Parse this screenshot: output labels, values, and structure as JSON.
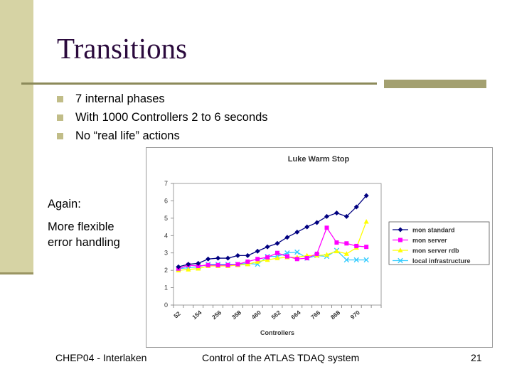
{
  "slide": {
    "title": "Transitions",
    "bullets": [
      "7 internal phases",
      "With 1000 Controllers 2 to 6 seconds",
      "No “real life” actions"
    ],
    "note_lines": [
      "Again:",
      "More flexible",
      "error handling"
    ],
    "footer": {
      "left": "CHEP04 - Interlaken",
      "center": "Control of the ATLAS TDAQ system",
      "page": "21"
    }
  },
  "chart_data": {
    "type": "line",
    "title": "Luke Warm Stop",
    "xlabel": "Controllers",
    "ylabel": "",
    "ylim": [
      0,
      7
    ],
    "yticks": [
      0,
      1,
      2,
      3,
      4,
      5,
      6,
      7
    ],
    "x": [
      52,
      103,
      154,
      205,
      256,
      307,
      358,
      409,
      460,
      511,
      562,
      613,
      664,
      715,
      766,
      817,
      868,
      919,
      970,
      1021,
      1072
    ],
    "x_tick_labels": [
      "52",
      "154",
      "256",
      "358",
      "460",
      "562",
      "664",
      "766",
      "868",
      "970"
    ],
    "legend": "right",
    "grid": false,
    "series": [
      {
        "name": "mon standard",
        "color": "#000080",
        "marker": "diamond",
        "values": [
          2.2,
          2.35,
          2.4,
          2.65,
          2.7,
          2.7,
          2.85,
          2.85,
          3.1,
          3.35,
          3.55,
          3.9,
          4.2,
          4.5,
          4.75,
          5.1,
          5.3,
          5.1,
          5.65,
          6.3,
          null
        ]
      },
      {
        "name": "mon server",
        "color": "#ff00ff",
        "marker": "square",
        "values": [
          2.1,
          2.3,
          2.25,
          2.3,
          2.3,
          2.3,
          2.35,
          2.5,
          2.65,
          2.75,
          3.0,
          2.8,
          2.65,
          2.7,
          2.95,
          4.45,
          3.6,
          3.55,
          3.4,
          3.35,
          null
        ]
      },
      {
        "name": "mon server rdb",
        "color": "#ffff00",
        "marker": "triangle",
        "values": [
          2.0,
          2.05,
          2.1,
          2.25,
          2.25,
          2.25,
          2.3,
          2.35,
          2.5,
          2.6,
          2.7,
          2.75,
          2.75,
          2.85,
          2.85,
          2.9,
          3.1,
          2.95,
          3.3,
          4.8,
          null
        ]
      },
      {
        "name": "local infrastructure",
        "color": "#33ccff",
        "marker": "x",
        "values": [
          2.1,
          2.15,
          2.2,
          2.35,
          2.35,
          2.35,
          2.35,
          2.4,
          2.35,
          2.8,
          2.8,
          3.0,
          3.05,
          2.7,
          2.85,
          2.8,
          3.15,
          2.6,
          2.6,
          2.6,
          null
        ]
      }
    ]
  }
}
